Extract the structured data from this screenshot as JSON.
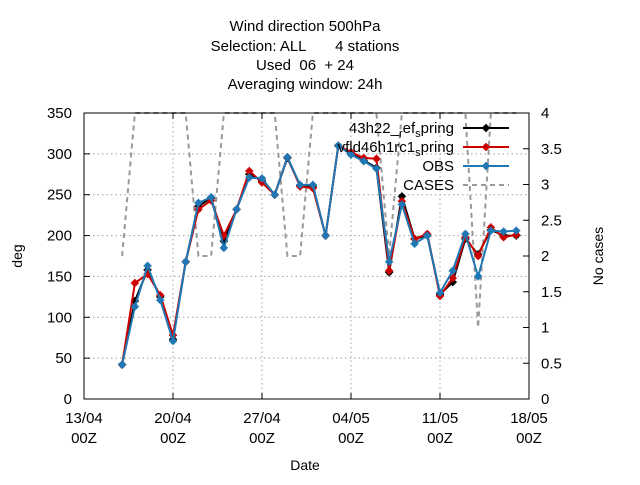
{
  "chart_data": {
    "type": "line",
    "title_lines": [
      "Wind direction 500hPa",
      "Selection: ALL       4 stations",
      "Used  06  + 24",
      "Averaging window: 24h"
    ],
    "xlabel": "Date",
    "ylabel": "deg",
    "y2label": "No cases",
    "x_ticks": [
      {
        "day": 0,
        "line1": "13/04",
        "line2": "00Z"
      },
      {
        "day": 7,
        "line1": "20/04",
        "line2": "00Z"
      },
      {
        "day": 14,
        "line1": "27/04",
        "line2": "00Z"
      },
      {
        "day": 21,
        "line1": "04/05",
        "line2": "00Z"
      },
      {
        "day": 28,
        "line1": "11/05",
        "line2": "00Z"
      },
      {
        "day": 35,
        "line1": "18/05",
        "line2": "00Z"
      }
    ],
    "xlim_days": [
      0,
      35
    ],
    "ylim": [
      0,
      350
    ],
    "y_ticks": [
      0,
      50,
      100,
      150,
      200,
      250,
      300,
      350
    ],
    "y2lim": [
      0,
      4
    ],
    "y2_ticks": [
      "0",
      "0.5",
      "1",
      "1.5",
      "2",
      "2.5",
      "3",
      "3.5",
      "4"
    ],
    "grid": true,
    "legend_position": "top-right",
    "series": [
      {
        "name": "43h22_ref_spring",
        "color": "#000000",
        "axis": "left",
        "style": "line-markers",
        "x": [
          3,
          4,
          5,
          6,
          7,
          8,
          9,
          10,
          11,
          12,
          13,
          14,
          15,
          16,
          17,
          18,
          19,
          20,
          21,
          22,
          23,
          24,
          25,
          26,
          27,
          28,
          29,
          30,
          31,
          32,
          33,
          34
        ],
        "y": [
          42,
          120,
          158,
          125,
          73,
          168,
          236,
          246,
          193,
          232,
          275,
          267,
          250,
          295,
          261,
          260,
          200,
          310,
          300,
          292,
          283,
          155,
          248,
          196,
          200,
          128,
          143,
          196,
          177,
          207,
          200,
          200
        ]
      },
      {
        "name": "vfld46h1rc1_spring",
        "color": "#cc0000",
        "axis": "left",
        "style": "line-markers",
        "x": [
          3,
          4,
          5,
          6,
          7,
          8,
          9,
          10,
          11,
          12,
          13,
          14,
          15,
          16,
          17,
          18,
          19,
          20,
          21,
          22,
          23,
          24,
          25,
          26,
          27,
          28,
          29,
          30,
          31,
          32,
          33,
          34
        ],
        "y": [
          42,
          142,
          153,
          127,
          78,
          168,
          232,
          243,
          200,
          232,
          279,
          265,
          250,
          296,
          260,
          258,
          200,
          310,
          302,
          295,
          294,
          157,
          242,
          196,
          202,
          126,
          148,
          198,
          175,
          210,
          198,
          201
        ]
      },
      {
        "name": "OBS",
        "color": "#1f77b4",
        "axis": "left",
        "style": "line-markers",
        "x": [
          3,
          4,
          5,
          6,
          7,
          8,
          9,
          10,
          11,
          12,
          13,
          14,
          15,
          16,
          17,
          18,
          19,
          20,
          21,
          22,
          23,
          24,
          25,
          26,
          27,
          28,
          29,
          30,
          31,
          32,
          33,
          34
        ],
        "y": [
          42,
          113,
          163,
          121,
          71,
          168,
          240,
          247,
          185,
          232,
          271,
          270,
          250,
          296,
          262,
          262,
          200,
          310,
          299,
          291,
          282,
          168,
          238,
          190,
          200,
          130,
          157,
          202,
          150,
          206,
          205,
          206
        ]
      },
      {
        "name": "CASES",
        "color": "#999999",
        "axis": "right",
        "style": "dashed",
        "x": [
          3,
          4,
          5,
          6,
          7,
          8,
          9,
          10,
          11,
          12,
          13,
          14,
          15,
          16,
          17,
          18,
          19,
          20,
          21,
          22,
          23,
          24,
          25,
          26,
          27,
          28,
          29,
          30,
          31,
          32,
          33,
          34
        ],
        "y": [
          2,
          4,
          4,
          4,
          4,
          4,
          2,
          2,
          4,
          4,
          4,
          4,
          4,
          2,
          2,
          4,
          4,
          4,
          4,
          4,
          4,
          2,
          4,
          4,
          4,
          4,
          4,
          4,
          1,
          4,
          4,
          4
        ]
      }
    ],
    "legend_entries": [
      {
        "series_index": 0,
        "base": "43h22_",
        "sub1": "r",
        "mid": "ef",
        "sub2": "s",
        "tail": "pring"
      },
      {
        "series_index": 1,
        "base": "vfld46h1rc1",
        "sub1": "",
        "mid": "",
        "sub2": "s",
        "tail": "pring"
      },
      {
        "series_index": 2,
        "base": "OBS",
        "sub1": "",
        "mid": "",
        "sub2": "",
        "tail": ""
      },
      {
        "series_index": 3,
        "base": "CASES",
        "sub1": "",
        "mid": "",
        "sub2": "",
        "tail": ""
      }
    ]
  }
}
